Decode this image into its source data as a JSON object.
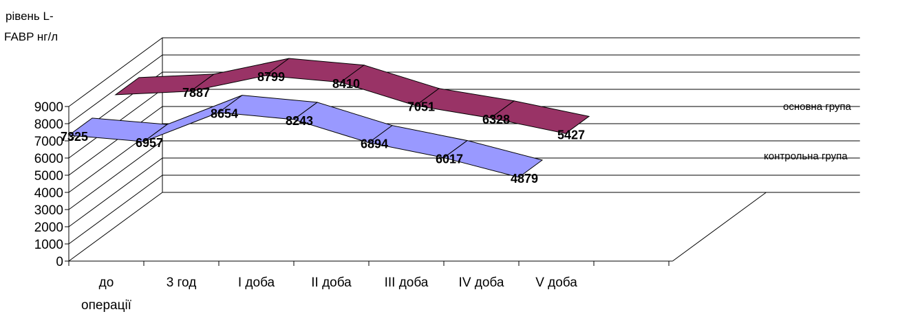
{
  "chart_data": {
    "type": "area",
    "title": "",
    "ylabel_lines": [
      "рівень L-",
      "FABP нг/л"
    ],
    "xlabel": "",
    "categories": [
      "до операції",
      "3 год",
      "I доба",
      "II доба",
      "III доба",
      "IV доба",
      "V доба"
    ],
    "ylim": [
      0,
      9000
    ],
    "yticks": [
      0,
      1000,
      2000,
      3000,
      4000,
      5000,
      6000,
      7000,
      8000,
      9000
    ],
    "grid": true,
    "legend_position": "right",
    "series": [
      {
        "name": "контрольна група",
        "color": "#9999ff",
        "values": [
          7325,
          6957,
          8654,
          8243,
          6894,
          6017,
          4879
        ]
      },
      {
        "name": "основна група",
        "color": "#993366",
        "values": [
          null,
          7887,
          8799,
          8410,
          7051,
          6328,
          5427
        ]
      }
    ]
  }
}
